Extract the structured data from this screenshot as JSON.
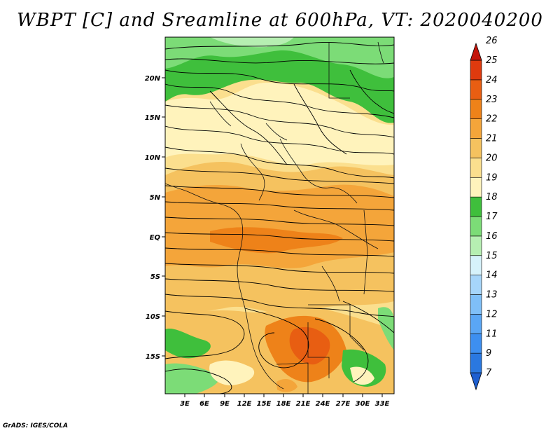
{
  "title": "WBPT [C] and Sreamline at 600hPa, VT: 2020040200",
  "credit": "GrADS: IGES/COLA",
  "map": {
    "lat_labels": [
      "20N",
      "15N",
      "10N",
      "5N",
      "EQ",
      "5S",
      "10S",
      "15S"
    ],
    "lon_labels": [
      "3E",
      "6E",
      "9E",
      "12E",
      "15E",
      "18E",
      "21E",
      "24E",
      "27E",
      "30E",
      "33E"
    ]
  },
  "colorbar": {
    "labels": [
      "7",
      "9",
      "11",
      "12",
      "13",
      "14",
      "15",
      "16",
      "17",
      "18",
      "19",
      "20",
      "21",
      "22",
      "23",
      "24",
      "25",
      "26"
    ],
    "colors": [
      "#1e5fd0",
      "#2a78e0",
      "#3d8ff0",
      "#5aa6f5",
      "#7fbff8",
      "#a6d5fa",
      "#d6f2fb",
      "#b6efb2",
      "#7cdc77",
      "#3fbf3c",
      "#fff3bc",
      "#fbdf8e",
      "#f5c25f",
      "#f4a53a",
      "#ee8219",
      "#e85e12",
      "#df3a0e",
      "#c4150a"
    ]
  }
}
